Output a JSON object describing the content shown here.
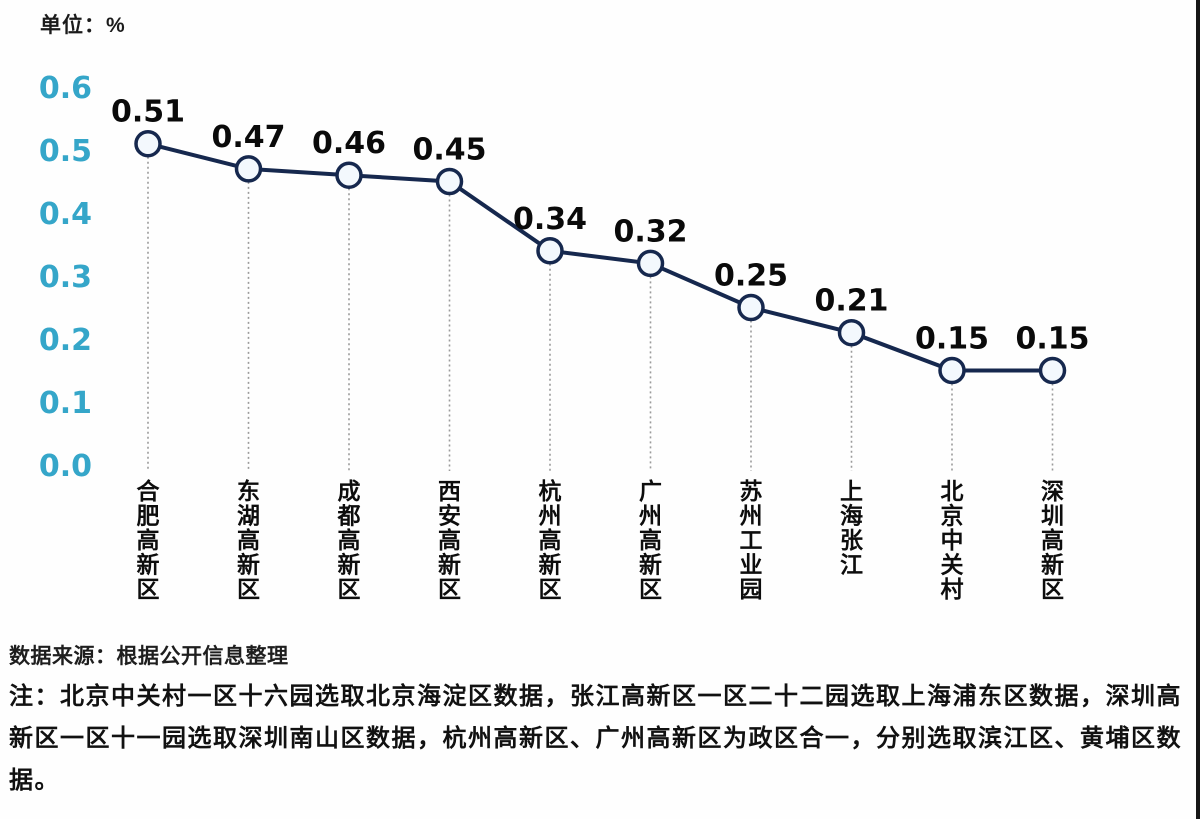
{
  "frame": {
    "unit_label": "单位：%",
    "source": "数据来源：根据公开信息整理",
    "note": "注：北京中关村一区十六园选取北京海淀区数据，张江高新区一区二十二园选取上海浦东区数据，深圳高新区一区十一园选取深圳南山区数据，杭州高新区、广州高新区为政区合一，分别选取滨江区、黄埔区数据。"
  },
  "chart_data": {
    "type": "line",
    "unit_label": "单位：%",
    "categories": [
      "合肥高新区",
      "东湖高新区",
      "成都高新区",
      "西安高新区",
      "杭州高新区",
      "广州高新区",
      "苏州工业园",
      "上海张江",
      "北京中关村",
      "深圳高新区"
    ],
    "values": [
      0.51,
      0.47,
      0.46,
      0.45,
      0.34,
      0.32,
      0.25,
      0.21,
      0.15,
      0.15
    ],
    "y_ticks": [
      0.6,
      0.5,
      0.4,
      0.3,
      0.2,
      0.1,
      0.0
    ],
    "ylim": [
      0.0,
      0.6
    ],
    "grid": false,
    "legend": "none",
    "marker": "circle-open",
    "guide_lines": "dotted-vertical",
    "colors": {
      "line": "#16284e",
      "marker_fill": "#f3f8fd",
      "marker_stroke": "#16284e",
      "tick_label": "#35a6c9",
      "data_label": "#0a0a0a",
      "guide": "#9b9b9b",
      "text": "#111111"
    }
  }
}
